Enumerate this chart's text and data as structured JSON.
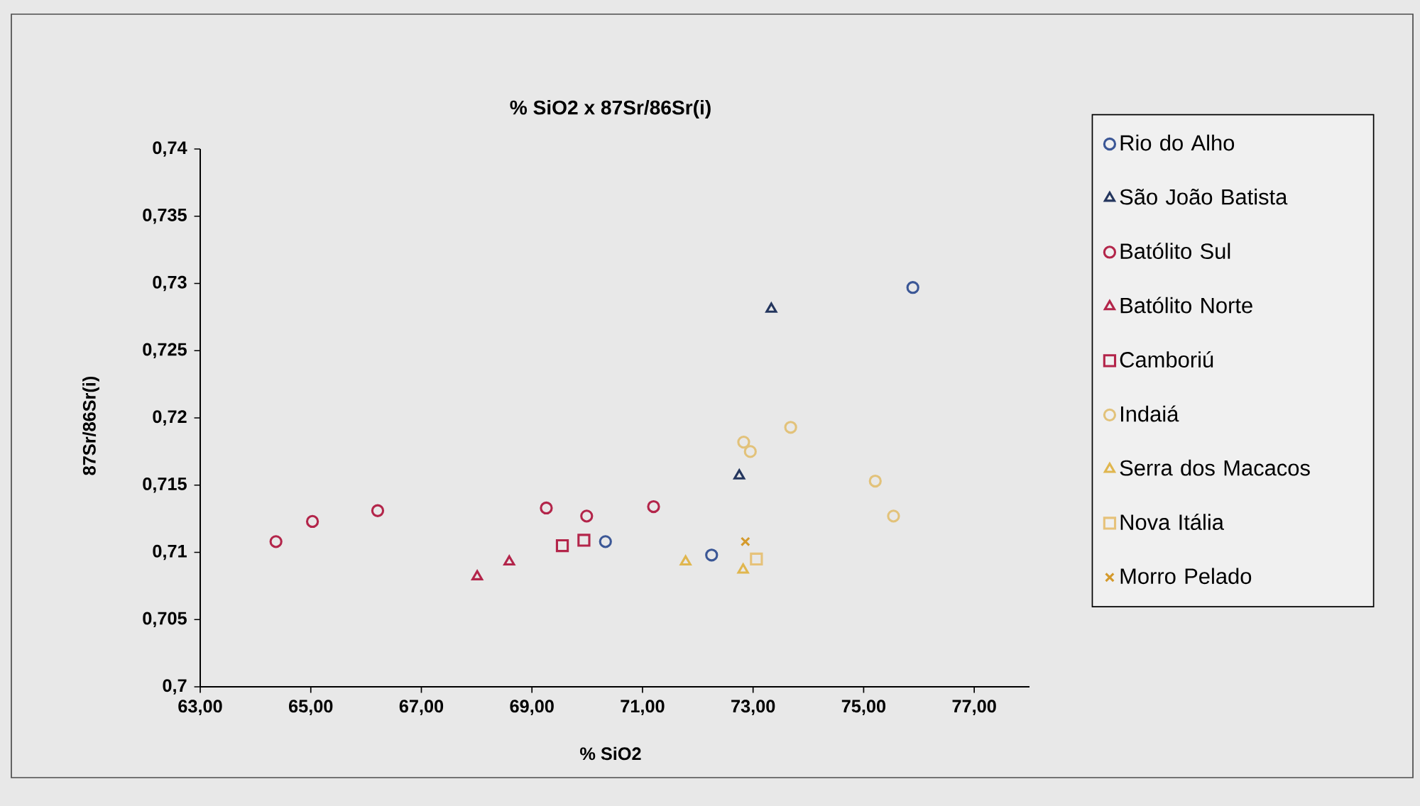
{
  "chart_data": {
    "type": "scatter",
    "title": "% SiO2 x 87Sr/86Sr(i)",
    "xlabel": "% SiO2",
    "ylabel": "87Sr/86Sr(i)",
    "xlim": [
      63,
      78
    ],
    "ylim": [
      0.7,
      0.74
    ],
    "xticks": [
      {
        "value": 63,
        "label": "63,00"
      },
      {
        "value": 65,
        "label": "65,00"
      },
      {
        "value": 67,
        "label": "67,00"
      },
      {
        "value": 69,
        "label": "69,00"
      },
      {
        "value": 71,
        "label": "71,00"
      },
      {
        "value": 73,
        "label": "73,00"
      },
      {
        "value": 75,
        "label": "75,00"
      },
      {
        "value": 77,
        "label": "77,00"
      }
    ],
    "yticks": [
      {
        "value": 0.7,
        "label": "0,7"
      },
      {
        "value": 0.705,
        "label": "0,705"
      },
      {
        "value": 0.71,
        "label": "0,71"
      },
      {
        "value": 0.715,
        "label": "0,715"
      },
      {
        "value": 0.72,
        "label": "0,72"
      },
      {
        "value": 0.725,
        "label": "0,725"
      },
      {
        "value": 0.73,
        "label": "0,73"
      },
      {
        "value": 0.735,
        "label": "0,735"
      },
      {
        "value": 0.74,
        "label": "0,74"
      }
    ],
    "grid": false,
    "legend": "right",
    "series": [
      {
        "name": "Rio do Alho",
        "color": "#3b5796",
        "marker": "circle",
        "x": [
          75.89,
          70.33,
          72.25
        ],
        "values": [
          0.7297,
          0.7108,
          0.7098
        ]
      },
      {
        "name": "São João Batista",
        "color": "#24365e",
        "marker": "triangle",
        "x": [
          73.33,
          72.75
        ],
        "values": [
          0.7281,
          0.7157
        ]
      },
      {
        "name": "Batólito Sul",
        "color": "#b3254a",
        "marker": "circle",
        "x": [
          64.37,
          65.03,
          66.21,
          69.26,
          69.99,
          71.2
        ],
        "values": [
          0.7108,
          0.7123,
          0.7131,
          0.7133,
          0.7127,
          0.7134
        ]
      },
      {
        "name": "Batólito Norte",
        "color": "#b3254a",
        "marker": "triangle",
        "x": [
          68.01,
          68.59
        ],
        "values": [
          0.7082,
          0.7093
        ]
      },
      {
        "name": "Camboriú",
        "color": "#b3254a",
        "marker": "square",
        "x": [
          69.55,
          69.94
        ],
        "values": [
          0.7105,
          0.7109
        ]
      },
      {
        "name": "Indaiá",
        "color": "#e2c27a",
        "marker": "circle",
        "x": [
          72.83,
          72.95,
          73.68,
          75.21,
          75.54
        ],
        "values": [
          0.7182,
          0.7175,
          0.7193,
          0.7153,
          0.7127
        ]
      },
      {
        "name": "Serra dos Macacos",
        "color": "#e0b64e",
        "marker": "triangle",
        "x": [
          71.78,
          72.82
        ],
        "values": [
          0.7093,
          0.7087
        ]
      },
      {
        "name": "Nova Itália",
        "color": "#e6c27a",
        "marker": "square",
        "x": [
          73.06
        ],
        "values": [
          0.7095
        ]
      },
      {
        "name": "Morro Pelado",
        "color": "#d49a2c",
        "marker": "cross",
        "x": [
          72.86
        ],
        "values": [
          0.7108
        ]
      }
    ]
  }
}
